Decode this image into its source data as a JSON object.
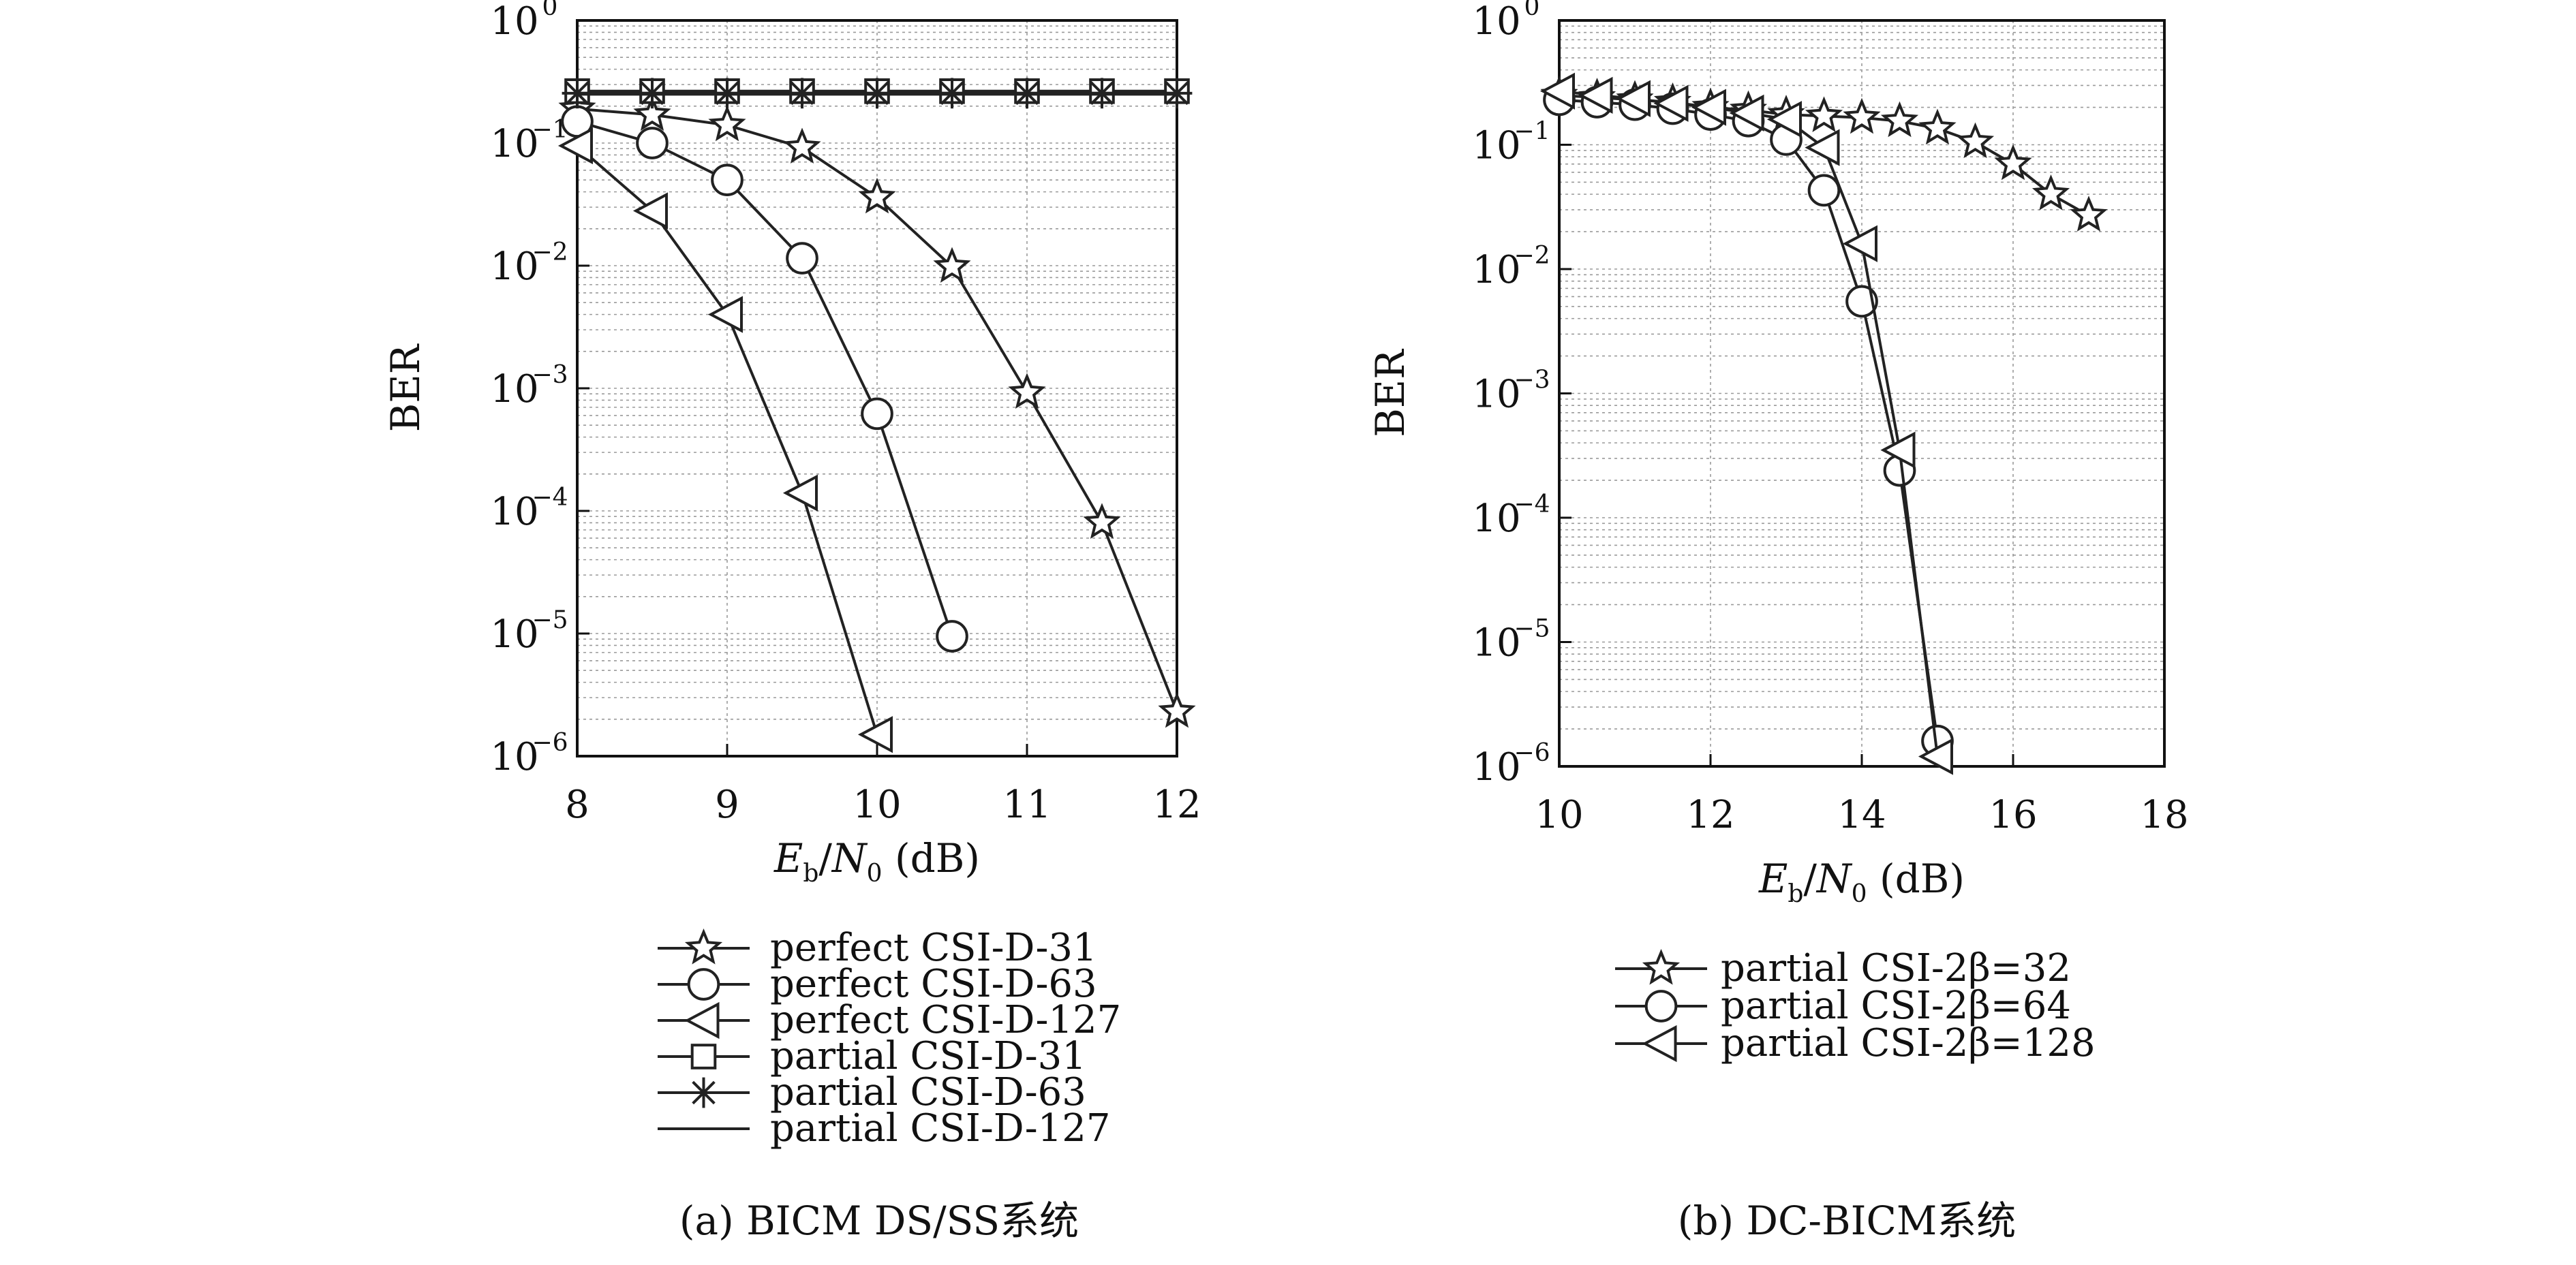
{
  "chart_data": [
    {
      "type": "line",
      "title": "",
      "caption": "(a) BICM DS/SS系统",
      "xlabel": "E_b/N_0 (dB)",
      "xlabel_parts": {
        "var1": "E",
        "sub1": "b",
        "slash": "/",
        "var2": "N",
        "sub2": "0",
        "unit": "(dB)"
      },
      "ylabel": "BER",
      "xlim": [
        8,
        12
      ],
      "ylim": [
        1e-06,
        1
      ],
      "yscale": "log",
      "grid": true,
      "xticks": [
        "8",
        "9",
        "10",
        "11",
        "12"
      ],
      "yticks": [
        {
          "base": "10",
          "exp": "0"
        },
        {
          "base": "10",
          "exp": "−1"
        },
        {
          "base": "10",
          "exp": "−2"
        },
        {
          "base": "10",
          "exp": "−3"
        },
        {
          "base": "10",
          "exp": "−4"
        },
        {
          "base": "10",
          "exp": "−5"
        },
        {
          "base": "10",
          "exp": "−6"
        }
      ],
      "legend_position": "below",
      "series": [
        {
          "name": "perfect CSI-D-31",
          "marker": "star",
          "x": [
            8,
            8.5,
            9,
            9.5,
            10,
            10.5,
            11,
            11.5,
            12
          ],
          "y": [
            0.19,
            0.17,
            0.14,
            0.092,
            0.036,
            0.0098,
            0.00092,
            8e-05,
            2.3e-06
          ]
        },
        {
          "name": "perfect CSI-D-63",
          "marker": "circle",
          "x": [
            8,
            8.5,
            9,
            9.5,
            10,
            10.5
          ],
          "y": [
            0.15,
            0.1,
            0.05,
            0.0115,
            0.00062,
            9.5e-06
          ]
        },
        {
          "name": "perfect CSI-D-127",
          "marker": "triangle-left",
          "x": [
            8,
            8.5,
            9,
            9.5,
            10
          ],
          "y": [
            0.095,
            0.028,
            0.004,
            0.00014,
            1.5e-06
          ]
        },
        {
          "name": "partial CSI-D-31",
          "marker": "square",
          "x": [
            8,
            8.5,
            9,
            9.5,
            10,
            10.5,
            11,
            11.5,
            12
          ],
          "y": [
            0.265,
            0.265,
            0.265,
            0.265,
            0.265,
            0.265,
            0.265,
            0.265,
            0.265
          ]
        },
        {
          "name": "partial CSI-D-63",
          "marker": "asterisk",
          "x": [
            8,
            8.5,
            9,
            9.5,
            10,
            10.5,
            11,
            11.5,
            12
          ],
          "y": [
            0.255,
            0.255,
            0.255,
            0.255,
            0.255,
            0.255,
            0.255,
            0.255,
            0.255
          ]
        },
        {
          "name": "partial CSI-D-127",
          "marker": "none",
          "x": [
            8,
            12
          ],
          "y": [
            0.25,
            0.25
          ]
        }
      ]
    },
    {
      "type": "line",
      "title": "",
      "caption": "(b) DC-BICM系统",
      "xlabel": "E_b/N_0 (dB)",
      "xlabel_parts": {
        "var1": "E",
        "sub1": "b",
        "slash": "/",
        "var2": "N",
        "sub2": "0",
        "unit": "(dB)"
      },
      "ylabel": "BER",
      "xlim": [
        10,
        18
      ],
      "ylim": [
        1e-06,
        1
      ],
      "yscale": "log",
      "grid": true,
      "xticks": [
        "10",
        "12",
        "14",
        "16",
        "18"
      ],
      "yticks": [
        {
          "base": "10",
          "exp": "0"
        },
        {
          "base": "10",
          "exp": "−1"
        },
        {
          "base": "10",
          "exp": "−2"
        },
        {
          "base": "10",
          "exp": "−3"
        },
        {
          "base": "10",
          "exp": "−4"
        },
        {
          "base": "10",
          "exp": "−5"
        },
        {
          "base": "10",
          "exp": "−6"
        }
      ],
      "legend_position": "below",
      "series": [
        {
          "name": "partial CSI-2β=32",
          "marker": "star",
          "x": [
            10,
            10.5,
            11,
            11.5,
            12,
            12.5,
            13,
            13.5,
            14,
            14.5,
            15,
            15.5,
            16,
            16.5,
            17
          ],
          "y": [
            0.25,
            0.24,
            0.23,
            0.22,
            0.2,
            0.19,
            0.175,
            0.17,
            0.165,
            0.155,
            0.135,
            0.105,
            0.07,
            0.04,
            0.027
          ]
        },
        {
          "name": "partial CSI-2β=64",
          "marker": "circle",
          "x": [
            10,
            10.5,
            11,
            11.5,
            12,
            12.5,
            13,
            13.5,
            14,
            14.5,
            15
          ],
          "y": [
            0.23,
            0.22,
            0.21,
            0.195,
            0.175,
            0.155,
            0.11,
            0.043,
            0.0055,
            0.00024,
            1.6e-06
          ]
        },
        {
          "name": "partial CSI-2β=128",
          "marker": "triangle-left",
          "x": [
            10,
            10.5,
            11,
            11.5,
            12,
            12.5,
            13,
            13.5,
            14,
            14.5,
            15
          ],
          "y": [
            0.27,
            0.25,
            0.235,
            0.215,
            0.2,
            0.18,
            0.16,
            0.095,
            0.016,
            0.00035,
            1.2e-06
          ]
        }
      ]
    }
  ]
}
